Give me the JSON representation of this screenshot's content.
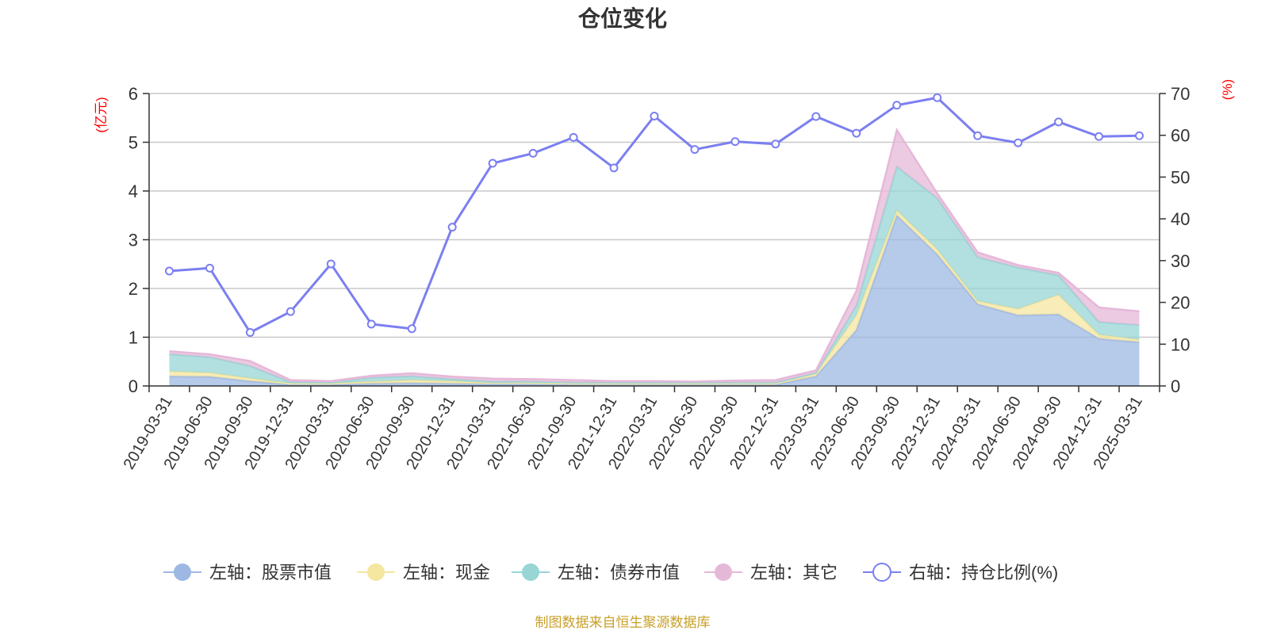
{
  "chart_data": {
    "type": "area",
    "title": "仓位变化",
    "left_axis_unit": "(亿元)",
    "right_axis_unit": "(%)",
    "ylim_left": [
      0,
      6
    ],
    "ylim_right": [
      0,
      70
    ],
    "yticks_left": [
      "0",
      "1",
      "2",
      "3",
      "4",
      "5",
      "6"
    ],
    "yticks_right": [
      "0",
      "10",
      "20",
      "30",
      "40",
      "50",
      "60",
      "70"
    ],
    "grid": true,
    "legend_position": "bottom",
    "stacked": true,
    "categories": [
      "2019-03-31",
      "2019-06-30",
      "2019-09-30",
      "2019-12-31",
      "2020-03-31",
      "2020-06-30",
      "2020-09-30",
      "2020-12-31",
      "2021-03-31",
      "2021-06-30",
      "2021-09-30",
      "2021-12-31",
      "2022-03-31",
      "2022-06-30",
      "2022-09-30",
      "2022-12-31",
      "2023-03-31",
      "2023-06-30",
      "2023-09-30",
      "2023-12-31",
      "2024-03-31",
      "2024-06-30",
      "2024-09-30",
      "2024-12-31",
      "2025-03-31"
    ],
    "series": [
      {
        "name": "左轴：股票市值",
        "axis": "left",
        "color": "#9db8e3",
        "values": [
          0.2,
          0.19,
          0.1,
          0.03,
          0.03,
          0.05,
          0.06,
          0.05,
          0.04,
          0.04,
          0.03,
          0.03,
          0.03,
          0.03,
          0.03,
          0.03,
          0.2,
          1.15,
          3.5,
          2.7,
          1.68,
          1.45,
          1.47,
          0.97,
          0.9
        ]
      },
      {
        "name": "左轴：现金",
        "axis": "left",
        "color": "#f5e6a0",
        "values": [
          0.1,
          0.08,
          0.06,
          0.02,
          0.02,
          0.04,
          0.06,
          0.05,
          0.02,
          0.02,
          0.02,
          0.02,
          0.02,
          0.02,
          0.02,
          0.02,
          0.05,
          0.3,
          0.1,
          0.1,
          0.06,
          0.13,
          0.4,
          0.08,
          0.05
        ]
      },
      {
        "name": "左轴：债券市值",
        "axis": "left",
        "color": "#98d6d6",
        "values": [
          0.35,
          0.32,
          0.25,
          0.03,
          0.02,
          0.08,
          0.08,
          0.04,
          0.03,
          0.03,
          0.02,
          0.02,
          0.02,
          0.02,
          0.02,
          0.02,
          0.02,
          0.2,
          0.9,
          1.05,
          0.9,
          0.85,
          0.4,
          0.26,
          0.3
        ]
      },
      {
        "name": "左轴：其它",
        "axis": "left",
        "color": "#e6b8d8",
        "values": [
          0.06,
          0.06,
          0.1,
          0.04,
          0.03,
          0.04,
          0.06,
          0.05,
          0.06,
          0.05,
          0.05,
          0.03,
          0.03,
          0.02,
          0.04,
          0.05,
          0.05,
          0.3,
          0.75,
          0.1,
          0.1,
          0.05,
          0.05,
          0.3,
          0.28
        ]
      },
      {
        "name": "右轴：持仓比例(%)",
        "axis": "right",
        "color": "#7b7ff0",
        "values": [
          27.5,
          28.2,
          12.8,
          17.8,
          29.2,
          14.8,
          13.7,
          38.0,
          53.3,
          55.7,
          59.5,
          52.2,
          64.6,
          56.6,
          58.5,
          57.9,
          64.5,
          60.5,
          67.2,
          69.0,
          59.9,
          58.2,
          63.2,
          59.7,
          59.9
        ]
      }
    ]
  },
  "footer": {
    "source": "制图数据来自恒生聚源数据库"
  }
}
